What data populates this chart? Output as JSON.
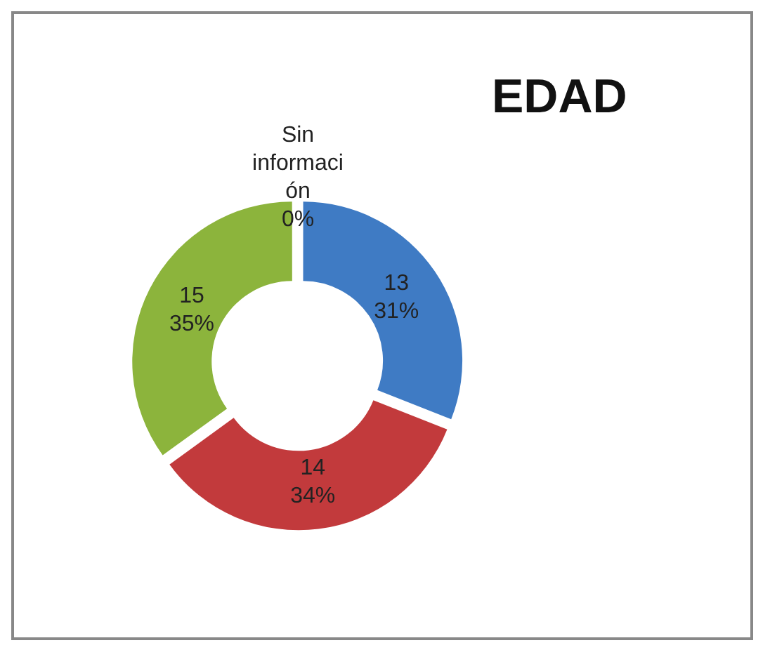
{
  "chart_data": {
    "type": "donut",
    "title": "EDAD",
    "categories": [
      "13",
      "14",
      "15",
      "Sin información"
    ],
    "values": [
      31,
      34,
      35,
      0
    ],
    "value_labels": [
      "31%",
      "34%",
      "35%",
      "0%"
    ],
    "colors": [
      "#3f7bc4",
      "#c23a3c",
      "#8cb43c",
      "#e9a3ab"
    ],
    "legend": false
  }
}
